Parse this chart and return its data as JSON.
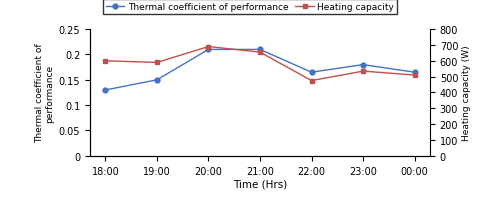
{
  "time_labels": [
    "18:00",
    "19:00",
    "20:00",
    "21:00",
    "22:00",
    "23:00",
    "00:00"
  ],
  "cop_values": [
    0.13,
    0.15,
    0.21,
    0.21,
    0.165,
    0.18,
    0.165
  ],
  "heating_capacity_values": [
    600,
    590,
    690,
    655,
    475,
    535,
    510
  ],
  "cop_color": "#4472C4",
  "heating_color": "#C0504D",
  "cop_label": "Thermal coefficient of performance",
  "heating_label": "Heating capacity",
  "ylabel_left": "Thermal coefficient of\nperformance",
  "ylabel_right": "Heating capacity (W)",
  "xlabel": "Time (Hrs)",
  "ylim_left": [
    0,
    0.25
  ],
  "ylim_right": [
    0,
    800
  ],
  "yticks_left": [
    0,
    0.05,
    0.1,
    0.15,
    0.2,
    0.25
  ],
  "yticks_right": [
    0,
    100,
    200,
    300,
    400,
    500,
    600,
    700,
    800
  ]
}
